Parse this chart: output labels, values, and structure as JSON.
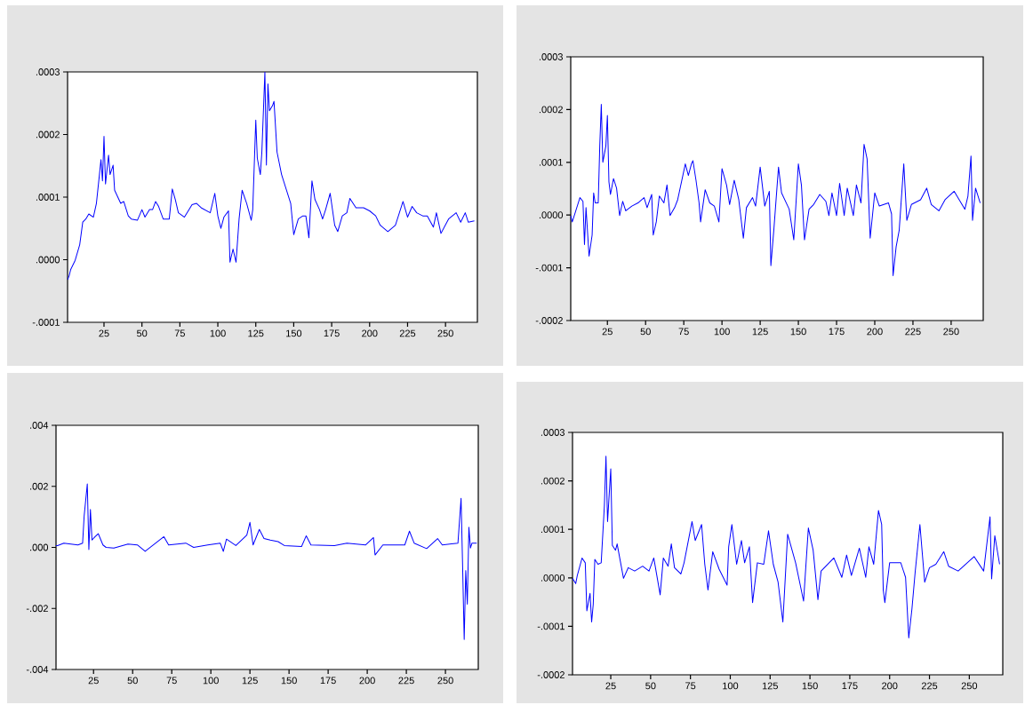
{
  "chart_data": [
    {
      "type": "line",
      "color": "#0000ff",
      "xlim": [
        1,
        271
      ],
      "ylim": [
        -0.0001,
        0.0003
      ],
      "grid": false,
      "xticks": [
        25,
        50,
        75,
        100,
        125,
        150,
        175,
        200,
        225,
        250
      ],
      "yticks": [
        {
          "value": -0.0001,
          "label": "-.0001"
        },
        {
          "value": 0,
          "label": ".0000"
        },
        {
          "value": 0.0001,
          "label": ".0001"
        },
        {
          "value": 0.0002,
          "label": ".0002"
        },
        {
          "value": 0.0003,
          "label": ".0003"
        }
      ],
      "x": [
        1,
        2,
        3,
        6,
        9,
        11,
        13,
        15,
        18,
        20,
        22,
        23,
        24,
        25,
        26,
        28,
        29,
        31,
        32,
        36,
        38,
        41,
        43,
        47,
        50,
        52,
        55,
        57,
        59,
        61,
        64,
        68,
        70,
        72,
        74,
        78,
        83,
        86,
        89,
        95,
        98,
        100,
        102,
        104,
        107,
        108,
        110,
        112,
        114,
        116,
        119,
        122,
        123,
        125,
        126,
        128,
        129,
        131,
        132,
        133,
        134,
        136,
        137,
        139,
        142,
        145,
        148,
        150,
        153,
        156,
        158,
        160,
        162,
        164,
        167,
        169,
        171,
        174,
        177,
        179,
        182,
        185,
        187,
        191,
        196,
        200,
        204,
        207,
        212,
        217,
        222,
        225,
        228,
        231,
        235,
        238,
        242,
        244,
        247,
        252,
        257,
        260,
        263,
        265,
        269
      ],
      "values": [
        -3.2e-05,
        -2.6e-05,
        -1.6e-05,
        -1e-06,
        2.4e-05,
        6e-05,
        6.5e-05,
        7.3e-05,
        6.8e-05,
        9e-05,
        0.000136,
        0.00016,
        0.000126,
        0.000197,
        0.000121,
        0.000167,
        0.000136,
        0.000151,
        0.000111,
        9e-05,
        9.3e-05,
        7e-05,
        6.5e-05,
        6.3e-05,
        8e-05,
        6.8e-05,
        8e-05,
        8e-05,
        9.3e-05,
        8.5e-05,
        6.5e-05,
        6.5e-05,
        0.000113,
        9.6e-05,
        7.5e-05,
        6.8e-05,
        8.8e-05,
        9e-05,
        8.3e-05,
        7.5e-05,
        0.000106,
        7e-05,
        5e-05,
        6.8e-05,
        7.8e-05,
        -4e-06,
        1.7e-05,
        -4e-06,
        6.5e-05,
        0.000111,
        9e-05,
        6.3e-05,
        8e-05,
        0.000223,
        0.000162,
        0.000136,
        0.000172,
        0.0003,
        0.000151,
        0.000281,
        0.000238,
        0.000246,
        0.000253,
        0.000172,
        0.000136,
        0.000113,
        9e-05,
        4e-05,
        6.5e-05,
        7e-05,
        7e-05,
        3.5e-05,
        0.000126,
        9.6e-05,
        8e-05,
        6.5e-05,
        8e-05,
        0.000106,
        5.5e-05,
        4.5e-05,
        7e-05,
        7.5e-05,
        9.8e-05,
        8.3e-05,
        8.3e-05,
        7.8e-05,
        7e-05,
        5.5e-05,
        4.5e-05,
        5.5e-05,
        9.3e-05,
        6.8e-05,
        8.5e-05,
        7.5e-05,
        7e-05,
        7e-05,
        5.2e-05,
        7.5e-05,
        4.2e-05,
        6.5e-05,
        7.5e-05,
        6e-05,
        7.5e-05,
        6e-05,
        6.2e-05
      ]
    },
    {
      "type": "line",
      "color": "#0000ff",
      "xlim": [
        1,
        271
      ],
      "ylim": [
        -0.0002,
        0.0003
      ],
      "grid": false,
      "xticks": [
        25,
        50,
        75,
        100,
        125,
        150,
        175,
        200,
        225,
        250
      ],
      "yticks": [
        {
          "value": -0.0002,
          "label": "-.0002"
        },
        {
          "value": -0.0001,
          "label": "-.0001"
        },
        {
          "value": 0,
          "label": ".0000"
        },
        {
          "value": 0.0001,
          "label": ".0001"
        },
        {
          "value": 0.0002,
          "label": ".0002"
        },
        {
          "value": 0.0003,
          "label": ".0003"
        }
      ],
      "x": [
        1,
        2,
        4,
        7,
        9,
        10,
        11,
        13,
        15,
        16,
        17,
        19,
        20,
        21,
        22,
        24,
        25,
        26,
        27,
        29,
        31,
        33,
        35,
        37,
        41,
        45,
        49,
        51,
        54,
        55,
        57,
        59,
        62,
        64,
        66,
        69,
        71,
        76,
        78,
        80,
        81,
        83,
        85,
        86,
        89,
        92,
        95,
        98,
        100,
        103,
        105,
        108,
        111,
        114,
        116,
        120,
        122,
        125,
        128,
        131,
        132,
        134,
        137,
        139,
        144,
        147,
        150,
        152,
        154,
        157,
        160,
        164,
        168,
        170,
        172,
        175,
        177,
        180,
        182,
        186,
        188,
        191,
        193,
        195,
        197,
        200,
        203,
        209,
        211,
        212,
        214,
        216,
        219,
        221,
        224,
        230,
        234,
        237,
        242,
        246,
        252,
        259,
        261,
        263,
        264,
        266,
        269
      ],
      "values": [
        -1e-06,
        -1.3e-05,
        5e-06,
        3.3e-05,
        2.6e-05,
        -5.6e-05,
        1.4e-05,
        -7.8e-05,
        -3.8e-05,
        4.2e-05,
        2.3e-05,
        2.3e-05,
        0.000131,
        0.00021,
        0.0001,
        0.000131,
        0.000189,
        6.3e-05,
        3.9e-05,
        6.9e-05,
        5.1e-05,
        -1e-06,
        2.6e-05,
        8e-06,
        1.7e-05,
        2.3e-05,
        3.3e-05,
        1.4e-05,
        3.9e-05,
        -3.8e-05,
        -1.3e-05,
        3.6e-05,
        2.3e-05,
        5.7e-05,
        -1e-06,
        1.4e-05,
        2.9e-05,
        9.7e-05,
        7.5e-05,
        9.7e-05,
        0.000103,
        6.6e-05,
        2.3e-05,
        -1.3e-05,
        4.8e-05,
        2.3e-05,
        1.7e-05,
        -1.3e-05,
        8.8e-05,
        5.7e-05,
        2e-05,
        6.6e-05,
        2.9e-05,
        -4.4e-05,
        1.4e-05,
        3.3e-05,
        1.7e-05,
        9.1e-05,
        1.7e-05,
        4.5e-05,
        -9.6e-05,
        -2.6e-05,
        9.1e-05,
        4.2e-05,
        1.1e-05,
        -4.7e-05,
        9.7e-05,
        5.7e-05,
        -4.7e-05,
        1.1e-05,
        2e-05,
        3.9e-05,
        2.6e-05,
        -1e-06,
        4.2e-05,
        -1e-06,
        6e-05,
        -1e-06,
        5.1e-05,
        -1e-06,
        5.7e-05,
        2.3e-05,
        0.000134,
        0.000106,
        -4.4e-05,
        4.2e-05,
        1.7e-05,
        2.3e-05,
        2e-06,
        -0.000115,
        -6e-05,
        -2.9e-05,
        9.7e-05,
        -1e-05,
        2e-05,
        2.9e-05,
        5.1e-05,
        2e-05,
        8e-06,
        2.9e-05,
        4.5e-05,
        1.1e-05,
        3.6e-05,
        0.000112,
        -1e-05,
        5.1e-05,
        2.3e-05
      ]
    },
    {
      "type": "line",
      "color": "#0000ff",
      "xlim": [
        1,
        271
      ],
      "ylim": [
        -0.004,
        0.004
      ],
      "grid": false,
      "xticks": [
        25,
        50,
        75,
        100,
        125,
        150,
        175,
        200,
        225,
        250
      ],
      "yticks": [
        {
          "value": -0.004,
          "label": "-.004"
        },
        {
          "value": -0.002,
          "label": "-.002"
        },
        {
          "value": 0,
          "label": ".000"
        },
        {
          "value": 0.002,
          "label": ".002"
        },
        {
          "value": 0.004,
          "label": ".004"
        }
      ],
      "x": [
        1,
        2,
        6,
        15,
        18,
        19,
        21,
        22,
        23,
        24,
        26,
        28,
        31,
        33,
        38,
        47,
        53,
        58,
        64,
        70,
        73,
        84,
        89,
        98,
        106,
        108,
        110,
        116,
        123,
        125,
        127,
        131,
        134,
        138,
        143,
        147,
        158,
        161,
        164,
        179,
        187,
        199,
        204,
        205,
        210,
        224,
        227,
        230,
        238,
        245,
        248,
        258,
        260,
        261,
        262,
        263,
        264,
        265,
        266,
        267,
        270
      ],
      "values": [
        6e-05,
        6e-05,
        0.00014,
        8e-05,
        0.00014,
        0.00103,
        0.00208,
        -7e-05,
        0.00124,
        0.00024,
        0.00035,
        0.00045,
        8e-05,
        0,
        -2e-05,
        0.00011,
        8e-05,
        -0.00013,
        0.00011,
        0.00035,
        8e-05,
        0.00014,
        0,
        8e-05,
        0.00014,
        -0.00013,
        0.00027,
        6e-05,
        0.0004,
        0.00082,
        8e-05,
        0.00059,
        0.00029,
        0.00024,
        0.00019,
        6e-05,
        3e-05,
        0.00038,
        8e-05,
        6e-05,
        0.00014,
        8e-05,
        0.00032,
        -0.00025,
        8e-05,
        8e-05,
        0.00053,
        0.00014,
        -4e-05,
        0.00029,
        8e-05,
        0.00014,
        0.00161,
        -0.00065,
        -0.00302,
        -0.00076,
        -0.00186,
        0.00066,
        -2e-05,
        0.00014,
        0.00014
      ]
    },
    {
      "type": "line",
      "color": "#0000ff",
      "xlim": [
        1,
        271
      ],
      "ylim": [
        -0.0002,
        0.0003
      ],
      "grid": false,
      "xticks": [
        25,
        50,
        75,
        100,
        125,
        150,
        175,
        200,
        225,
        250
      ],
      "yticks": [
        {
          "value": -0.0002,
          "label": "-.0002"
        },
        {
          "value": -0.0001,
          "label": "-.0001"
        },
        {
          "value": 0,
          "label": ".0000"
        },
        {
          "value": 0.0001,
          "label": ".0001"
        },
        {
          "value": 0.0002,
          "label": ".0002"
        },
        {
          "value": 0.0003,
          "label": ".0003"
        }
      ],
      "x": [
        1,
        3,
        4,
        7,
        9,
        10,
        12,
        13,
        14,
        15,
        17,
        19,
        21,
        22,
        23,
        25,
        26,
        28,
        29,
        33,
        36,
        40,
        45,
        49,
        52,
        56,
        58,
        61,
        63,
        65,
        69,
        71,
        76,
        78,
        82,
        84,
        86,
        89,
        93,
        98,
        99,
        101,
        104,
        107,
        109,
        112,
        114,
        117,
        121,
        124,
        127,
        130,
        133,
        136,
        141,
        146,
        149,
        152,
        155,
        157,
        165,
        170,
        173,
        176,
        181,
        185,
        187,
        190,
        193,
        195,
        196,
        197,
        200,
        207,
        210,
        212,
        214,
        216,
        219,
        222,
        225,
        229,
        234,
        237,
        243,
        253,
        259,
        263,
        264,
        266,
        269
      ],
      "values": [
        -1e-06,
        -1.2e-05,
        5e-06,
        4.1e-05,
        3.1e-05,
        -6.8e-05,
        -3.2e-05,
        -9.1e-05,
        -5.5e-05,
        3.8e-05,
        2.8e-05,
        3.1e-05,
        0.000149,
        0.000251,
        0.000116,
        0.000225,
        6.7e-05,
        5.7e-05,
        7e-05,
        -1e-06,
        2.1e-05,
        1.4e-05,
        2.4e-05,
        1.4e-05,
        4.1e-05,
        -3.5e-05,
        4.1e-05,
        2.4e-05,
        7e-05,
        2.1e-05,
        8e-06,
        3.1e-05,
        0.000116,
        7.7e-05,
        0.00011,
        2.8e-05,
        -2.5e-05,
        5.4e-05,
        1.8e-05,
        -1.5e-05,
        6.4e-05,
        0.00011,
        2.8e-05,
        7.7e-05,
        3.1e-05,
        6.4e-05,
        -5.1e-05,
        3.1e-05,
        2.8e-05,
        9.7e-05,
        2.8e-05,
        -9e-06,
        -9.1e-05,
        9e-05,
        3.1e-05,
        -4.8e-05,
        0.000103,
        5.7e-05,
        -4.5e-05,
        1.4e-05,
        4.1e-05,
        1e-06,
        4.7e-05,
        5e-06,
        6.1e-05,
        1e-06,
        6.4e-05,
        2.8e-05,
        0.000139,
        0.00011,
        -2.5e-05,
        -5.1e-05,
        3.1e-05,
        3.1e-05,
        1e-06,
        -0.000124,
        -6.4e-05,
        1.1e-05,
        0.00011,
        -9e-06,
        2.1e-05,
        2.8e-05,
        5.4e-05,
        2.4e-05,
        1.4e-05,
        4.4e-05,
        1.4e-05,
        0.000126,
        -2e-06,
        8.7e-05,
        2.8e-05
      ]
    }
  ]
}
